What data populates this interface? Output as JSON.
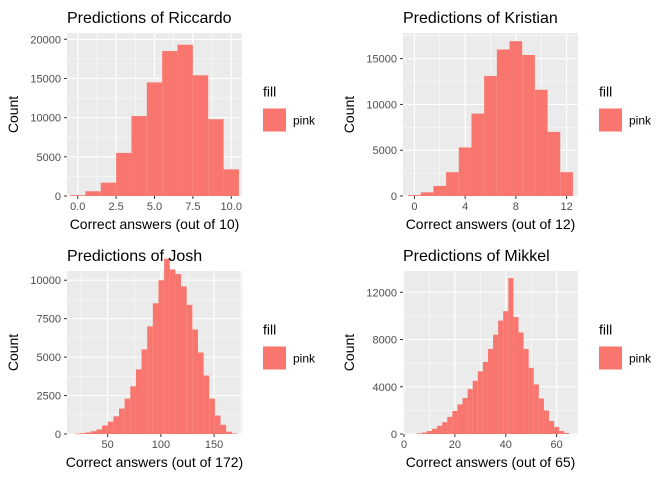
{
  "chart_data": [
    {
      "type": "bar",
      "title": "Predictions of Riccardo",
      "xlabel": "Correct answers (out of 10)",
      "ylabel": "Count",
      "bin_width": 1,
      "x": [
        0,
        1,
        2,
        3,
        4,
        5,
        6,
        7,
        8,
        9,
        10
      ],
      "values": [
        100,
        600,
        1700,
        5500,
        10200,
        14500,
        18500,
        19300,
        15400,
        9800,
        3400
      ],
      "xlim": [
        -0.7,
        10.7
      ],
      "ylim": [
        0,
        20800
      ],
      "xticks": [
        0,
        2.5,
        5,
        7.5,
        10
      ],
      "xtick_labels": [
        "0.0",
        "2.5",
        "5.0",
        "7.5",
        "10.0"
      ],
      "yticks": [
        0,
        5000,
        10000,
        15000,
        20000
      ],
      "ytick_labels": [
        "0",
        "5000",
        "10000",
        "15000",
        "20000"
      ],
      "legend": {
        "title": "fill",
        "labels": [
          "pink"
        ],
        "position": "right"
      },
      "grid": true,
      "fill_color": "#F8766D",
      "panel_color": "#EBEBEB"
    },
    {
      "type": "bar",
      "title": "Predictions of Kristian",
      "xlabel": "Correct answers (out of 12)",
      "ylabel": "Count",
      "bin_width": 1,
      "x": [
        0,
        1,
        2,
        3,
        4,
        5,
        6,
        7,
        8,
        9,
        10,
        11,
        12
      ],
      "values": [
        100,
        400,
        1100,
        2600,
        5300,
        9000,
        13100,
        16000,
        16900,
        15400,
        11600,
        7000,
        2600
      ],
      "xlim": [
        -0.9,
        12.9
      ],
      "ylim": [
        0,
        17800
      ],
      "xticks": [
        0,
        4,
        8,
        12
      ],
      "xtick_labels": [
        "0",
        "4",
        "8",
        "12"
      ],
      "yticks": [
        0,
        5000,
        10000,
        15000
      ],
      "ytick_labels": [
        "0",
        "5000",
        "10000",
        "15000"
      ],
      "legend": {
        "title": "fill",
        "labels": [
          "pink"
        ],
        "position": "right"
      },
      "grid": true,
      "fill_color": "#F8766D",
      "panel_color": "#EBEBEB"
    },
    {
      "type": "bar",
      "title": "Predictions of Josh",
      "xlabel": "Correct answers (out of 172)",
      "ylabel": "Count",
      "bin_width": 5.3,
      "x": [
        20.9,
        26.2,
        31.5,
        36.8,
        42.1,
        47.4,
        52.7,
        58.0,
        63.3,
        68.6,
        73.9,
        79.2,
        84.5,
        89.8,
        95.1,
        100.4,
        105.7,
        111.0,
        116.3,
        121.6,
        126.9,
        132.2,
        137.5,
        142.8,
        148.1,
        153.4,
        158.7,
        164.0,
        169.3
      ],
      "values": [
        20,
        50,
        100,
        180,
        300,
        550,
        800,
        1150,
        1650,
        2300,
        3100,
        4200,
        5500,
        7000,
        8500,
        10000,
        11400,
        10700,
        10400,
        9600,
        8400,
        6800,
        5300,
        3800,
        2300,
        1200,
        600,
        150,
        30
      ],
      "xlim": [
        11.8,
        176.2
      ],
      "ylim": [
        0,
        10600
      ],
      "xticks": [
        50,
        100,
        150
      ],
      "xtick_labels": [
        "50",
        "100",
        "150"
      ],
      "yticks": [
        0,
        2500,
        5000,
        7500,
        10000
      ],
      "ytick_labels": [
        "0",
        "2500",
        "5000",
        "7500",
        "10000"
      ],
      "legend": {
        "title": "fill",
        "labels": [
          "pink"
        ],
        "position": "right"
      },
      "grid": true,
      "fill_color": "#F8766D",
      "panel_color": "#EBEBEB"
    },
    {
      "type": "bar",
      "title": "Predictions of Mikkel",
      "xlabel": "Correct answers (out of 65)",
      "ylabel": "Count",
      "bin_width": 2,
      "x": [
        6,
        8,
        10,
        12,
        14,
        16,
        18,
        20,
        22,
        24,
        26,
        28,
        30,
        32,
        34,
        36,
        38,
        40,
        42,
        44,
        46,
        48,
        50,
        52,
        54,
        56,
        58,
        60,
        62,
        64
      ],
      "values": [
        50,
        120,
        250,
        450,
        700,
        1000,
        1450,
        1950,
        2500,
        3050,
        3800,
        4500,
        5300,
        6100,
        7200,
        8400,
        9600,
        10400,
        13200,
        9900,
        8600,
        7200,
        5600,
        4200,
        3000,
        2000,
        1100,
        600,
        250,
        80
      ],
      "xlim": [
        -0.4,
        68.4
      ],
      "ylim": [
        0,
        13800
      ],
      "xticks": [
        0,
        20,
        40,
        60
      ],
      "xtick_labels": [
        "0",
        "20",
        "40",
        "60"
      ],
      "yticks": [
        0,
        4000,
        8000,
        12000
      ],
      "ytick_labels": [
        "0",
        "4000",
        "8000",
        "12000"
      ],
      "legend": {
        "title": "fill",
        "labels": [
          "pink"
        ],
        "position": "right"
      },
      "grid": true,
      "fill_color": "#F8766D",
      "panel_color": "#EBEBEB"
    }
  ]
}
